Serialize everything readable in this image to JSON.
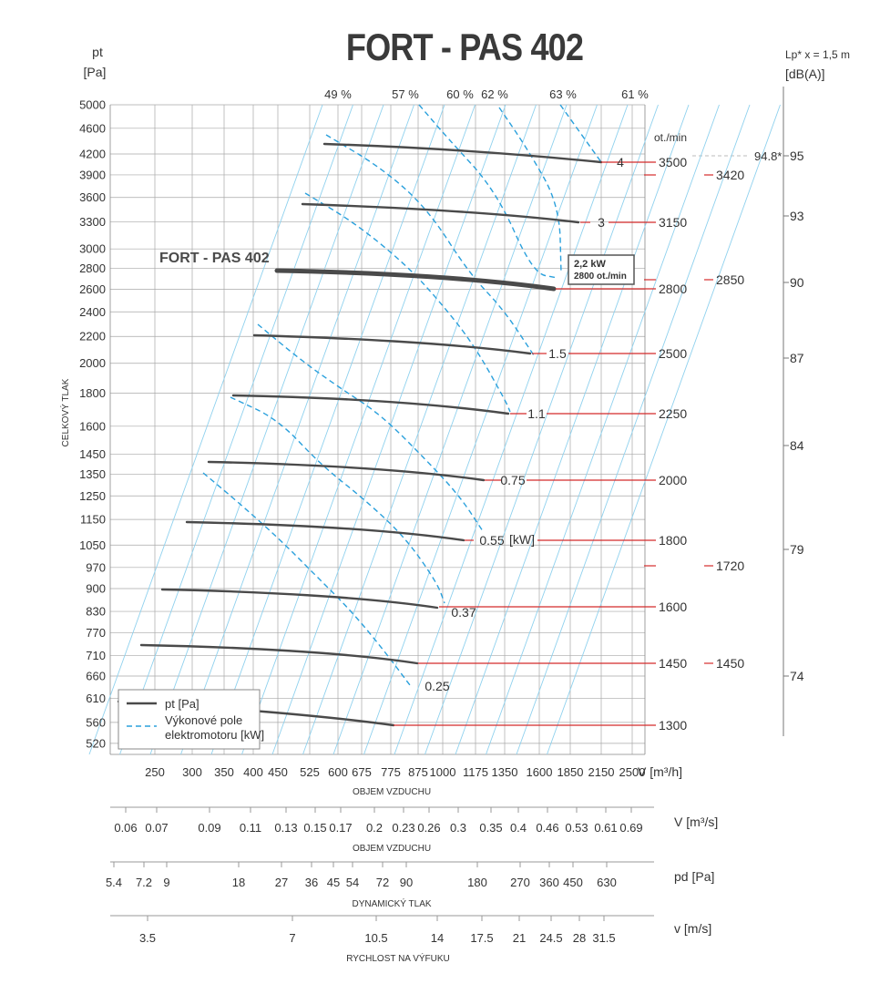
{
  "title": "FORT - PAS 402",
  "chart_data": {
    "type": "line",
    "title": "FORT - PAS 402",
    "left_axis": {
      "label_top": "pt",
      "unit": "[Pa]",
      "ticks": [
        5000,
        4600,
        4200,
        3900,
        3600,
        3300,
        3000,
        2800,
        2600,
        2400,
        2200,
        2000,
        1800,
        1600,
        1450,
        1350,
        1250,
        1150,
        1050,
        970,
        900,
        830,
        770,
        710,
        660,
        610,
        560,
        520
      ],
      "ylabel": "CELKOVÝ TLAK"
    },
    "x_axis": {
      "ticks": [
        250,
        300,
        350,
        400,
        450,
        525,
        600,
        675,
        775,
        875,
        1000,
        1175,
        1350,
        1600,
        1850,
        2150,
        2500
      ],
      "unit": "V [m³/h]",
      "xlabel": "OBJEM VZDUCHU"
    },
    "flow_ms_axis": {
      "unit": "V  [m³/s]",
      "ticks": [
        "0.06",
        "0.07",
        "0.09",
        "0.11",
        "0.13",
        "0.15",
        "0.17",
        "0.2",
        "0.23",
        "0.26",
        "0.3",
        "0.35",
        "0.4",
        "0.46",
        "0.53",
        "0.61",
        "0.69"
      ],
      "label": "OBJEM VZDUCHU"
    },
    "dynamic_pressure_axis": {
      "unit": "pd  [Pa]",
      "ticks": [
        "5.4",
        "7.2",
        "9",
        "18",
        "27",
        "36",
        "45",
        "54",
        "72",
        "90",
        "180",
        "270",
        "360",
        "450",
        "630"
      ],
      "label": "DYNAMICKÝ TLAK"
    },
    "velocity_axis": {
      "unit": "v  [m/s]",
      "ticks": [
        "3.5",
        "7",
        "10.5",
        "14",
        "17.5",
        "21",
        "24.5",
        "28",
        "31.5"
      ],
      "label": "RYCHLOST NA VÝFUKU"
    },
    "rpm_axis": {
      "header": "ot./min",
      "labels": [
        "3500",
        "3420",
        "3150",
        "2850",
        "2800",
        "2500",
        "2250",
        "2000",
        "1800",
        "1720",
        "1600",
        "1450",
        "1450",
        "1300"
      ]
    },
    "noise_axis": {
      "header": "Lp* x = 1,5 m",
      "unit": "[dB(A)]",
      "ticks": [
        "95",
        "93",
        "90",
        "87",
        "84",
        "79",
        "74"
      ],
      "marker": "94.8*"
    },
    "efficiency_labels": [
      "49 %",
      "57 %",
      "60 %",
      "62 %",
      "63 %",
      "61 %"
    ],
    "power_labels": [
      "4",
      "3",
      "1.5",
      "1.1",
      "0.75",
      "0.55",
      "[kW]",
      "0.37",
      "0.25"
    ],
    "series": [
      {
        "rpm": 3500,
        "points": [
          [
            600,
            4300
          ],
          [
            2150,
            4080
          ]
        ]
      },
      {
        "rpm": 3150,
        "points": [
          [
            525,
            3500
          ],
          [
            1850,
            3290
          ]
        ]
      },
      {
        "rpm": 2800,
        "points": [
          [
            450,
            2780
          ],
          [
            1700,
            2600
          ]
        ],
        "highlight": true
      },
      {
        "rpm": 2500,
        "points": [
          [
            400,
            2220
          ],
          [
            1500,
            2080
          ]
        ]
      },
      {
        "rpm": 2250,
        "points": [
          [
            350,
            1790
          ],
          [
            1350,
            1670
          ]
        ]
      },
      {
        "rpm": 2000,
        "points": [
          [
            300,
            1420
          ],
          [
            1175,
            1330
          ]
        ]
      },
      {
        "rpm": 1800,
        "points": [
          [
            270,
            1145
          ],
          [
            1000,
            1075
          ]
        ]
      },
      {
        "rpm": 1600,
        "points": [
          [
            230,
            905
          ],
          [
            875,
            840
          ]
        ]
      },
      {
        "rpm": 1450,
        "points": [
          [
            210,
            745
          ],
          [
            800,
            695
          ]
        ]
      },
      {
        "rpm": 1300,
        "points": [
          [
            200,
            605
          ],
          [
            700,
            560
          ]
        ]
      }
    ],
    "highlight_box": {
      "line1": "2,2 kW",
      "line2": "2800 ot./min"
    },
    "curve_label": "FORT - PAS 402",
    "legend": [
      {
        "label": "pt [Pa]",
        "style": "solid"
      },
      {
        "label": "Výkonové pole elektromotoru  [kW]",
        "style": "dashed",
        "line1": "Výkonové pole",
        "line2": "elektromotoru  [kW]"
      }
    ],
    "colors": {
      "curve": "#4a4a4a",
      "grid": "#a8a8a8",
      "efficiency": "#8fd1ee",
      "power": "#2aa0dc",
      "rpm_line": "#d42a2a"
    }
  }
}
